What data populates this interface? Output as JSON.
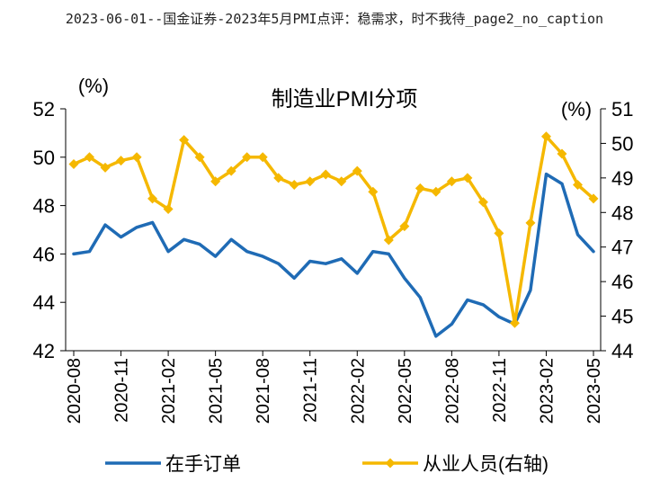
{
  "caption": "2023-06-01--国金证券-2023年5月PMI点评：稳需求，时不我待_page2_no_caption",
  "chart_data": {
    "type": "line",
    "title": "制造业PMI分项",
    "left_unit": "(%)",
    "right_unit": "(%)",
    "left_ylim": [
      42,
      52
    ],
    "left_yticks": [
      42,
      44,
      46,
      48,
      50,
      52
    ],
    "right_ylim": [
      44,
      51
    ],
    "right_yticks": [
      44,
      45,
      46,
      47,
      48,
      49,
      50,
      51
    ],
    "x": [
      "2020-08",
      "2020-09",
      "2020-10",
      "2020-11",
      "2020-12",
      "2021-01",
      "2021-02",
      "2021-03",
      "2021-04",
      "2021-05",
      "2021-06",
      "2021-07",
      "2021-08",
      "2021-09",
      "2021-10",
      "2021-11",
      "2021-12",
      "2022-01",
      "2022-02",
      "2022-03",
      "2022-04",
      "2022-05",
      "2022-06",
      "2022-07",
      "2022-08",
      "2022-09",
      "2022-10",
      "2022-11",
      "2022-12",
      "2023-01",
      "2023-02",
      "2023-03",
      "2023-04",
      "2023-05"
    ],
    "xtick_labels": [
      "2020-08",
      "2020-11",
      "2021-02",
      "2021-05",
      "2021-08",
      "2021-11",
      "2022-02",
      "2022-05",
      "2022-08",
      "2022-11",
      "2023-02",
      "2023-05"
    ],
    "series": [
      {
        "name": "在手订单",
        "axis": "left",
        "color": "#1f6bb5",
        "values": [
          46.0,
          46.1,
          47.2,
          46.7,
          47.1,
          47.3,
          46.1,
          46.6,
          46.4,
          45.9,
          46.6,
          46.1,
          45.9,
          45.6,
          45.0,
          45.7,
          45.6,
          45.8,
          45.2,
          46.1,
          46.0,
          45.0,
          44.2,
          42.6,
          43.1,
          44.1,
          43.9,
          43.4,
          43.1,
          44.5,
          49.3,
          48.9,
          46.8,
          46.1
        ]
      },
      {
        "name": "从业人员(右轴)",
        "axis": "right",
        "color": "#f5b800",
        "values": [
          49.4,
          49.6,
          49.3,
          49.5,
          49.6,
          48.4,
          48.1,
          50.1,
          49.6,
          48.9,
          49.2,
          49.6,
          49.6,
          49.0,
          48.8,
          48.9,
          49.1,
          48.9,
          49.2,
          48.6,
          47.2,
          47.6,
          48.7,
          48.6,
          48.9,
          49.0,
          48.3,
          47.4,
          44.8,
          47.7,
          50.2,
          49.7,
          48.8,
          48.4
        ]
      }
    ],
    "legend": [
      {
        "label": "在手订单"
      },
      {
        "label": "从业人员(右轴)"
      }
    ],
    "legend_position": "bottom"
  }
}
